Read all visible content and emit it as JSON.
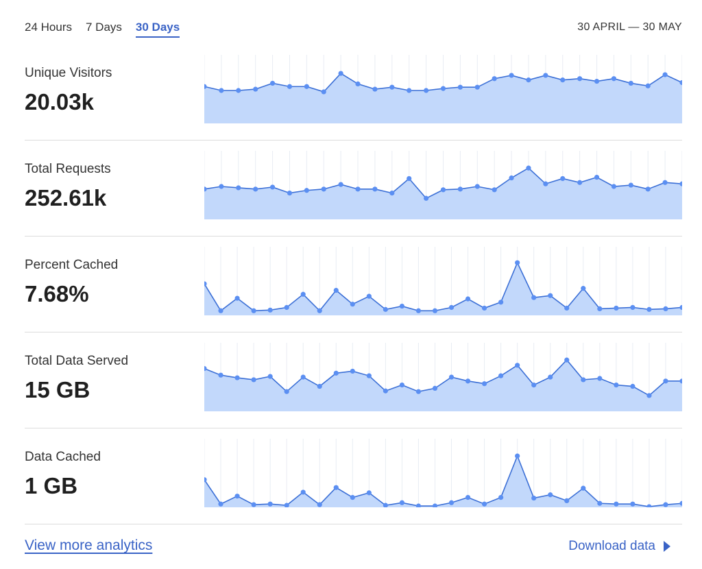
{
  "tabs": [
    {
      "label": "24 Hours",
      "active": false
    },
    {
      "label": "7 Days",
      "active": false
    },
    {
      "label": "30 Days",
      "active": true
    }
  ],
  "date_range": "30 APRIL — 30 MAY",
  "colors": {
    "accent": "#3a63c6",
    "line": "#3b6fd6",
    "fill": "#c2d8fb",
    "point": "#5b8ff2",
    "gridline": "#e8ecf3"
  },
  "metrics": [
    {
      "label": "Unique Visitors",
      "value": "20.03k"
    },
    {
      "label": "Total Requests",
      "value": "252.61k"
    },
    {
      "label": "Percent Cached",
      "value": "7.68%"
    },
    {
      "label": "Total Data Served",
      "value": "15 GB"
    },
    {
      "label": "Data Cached",
      "value": "1 GB"
    }
  ],
  "chart_data": [
    {
      "type": "area",
      "ylim": [
        0,
        1
      ],
      "values": [
        0.56,
        0.5,
        0.5,
        0.52,
        0.61,
        0.56,
        0.56,
        0.48,
        0.76,
        0.6,
        0.52,
        0.55,
        0.5,
        0.5,
        0.53,
        0.55,
        0.55,
        0.68,
        0.73,
        0.66,
        0.73,
        0.66,
        0.68,
        0.64,
        0.68,
        0.61,
        0.57,
        0.74,
        0.62
      ]
    },
    {
      "type": "area",
      "ylim": [
        0,
        1
      ],
      "values": [
        0.46,
        0.5,
        0.48,
        0.46,
        0.49,
        0.4,
        0.44,
        0.46,
        0.53,
        0.46,
        0.46,
        0.4,
        0.62,
        0.32,
        0.45,
        0.46,
        0.5,
        0.45,
        0.63,
        0.78,
        0.54,
        0.62,
        0.56,
        0.64,
        0.5,
        0.52,
        0.46,
        0.56,
        0.54
      ]
    },
    {
      "type": "area",
      "ylim": [
        0,
        1
      ],
      "values": [
        0.48,
        0.07,
        0.26,
        0.07,
        0.08,
        0.12,
        0.32,
        0.07,
        0.38,
        0.17,
        0.29,
        0.09,
        0.14,
        0.07,
        0.07,
        0.12,
        0.25,
        0.11,
        0.2,
        0.8,
        0.27,
        0.3,
        0.11,
        0.41,
        0.1,
        0.11,
        0.12,
        0.09,
        0.1,
        0.12
      ]
    },
    {
      "type": "area",
      "ylim": [
        0,
        1
      ],
      "values": [
        0.65,
        0.55,
        0.51,
        0.48,
        0.53,
        0.3,
        0.52,
        0.38,
        0.58,
        0.61,
        0.54,
        0.31,
        0.4,
        0.3,
        0.35,
        0.52,
        0.46,
        0.42,
        0.54,
        0.7,
        0.4,
        0.52,
        0.78,
        0.48,
        0.5,
        0.4,
        0.38,
        0.24,
        0.46,
        0.46
      ]
    },
    {
      "type": "area",
      "ylim": [
        0,
        1
      ],
      "values": [
        0.42,
        0.05,
        0.17,
        0.04,
        0.05,
        0.03,
        0.23,
        0.04,
        0.3,
        0.15,
        0.22,
        0.03,
        0.07,
        0.02,
        0.02,
        0.07,
        0.15,
        0.05,
        0.15,
        0.78,
        0.14,
        0.19,
        0.1,
        0.29,
        0.06,
        0.05,
        0.05,
        0.01,
        0.04,
        0.06
      ]
    }
  ],
  "footer": {
    "view_more": "View more analytics",
    "download": "Download data"
  }
}
